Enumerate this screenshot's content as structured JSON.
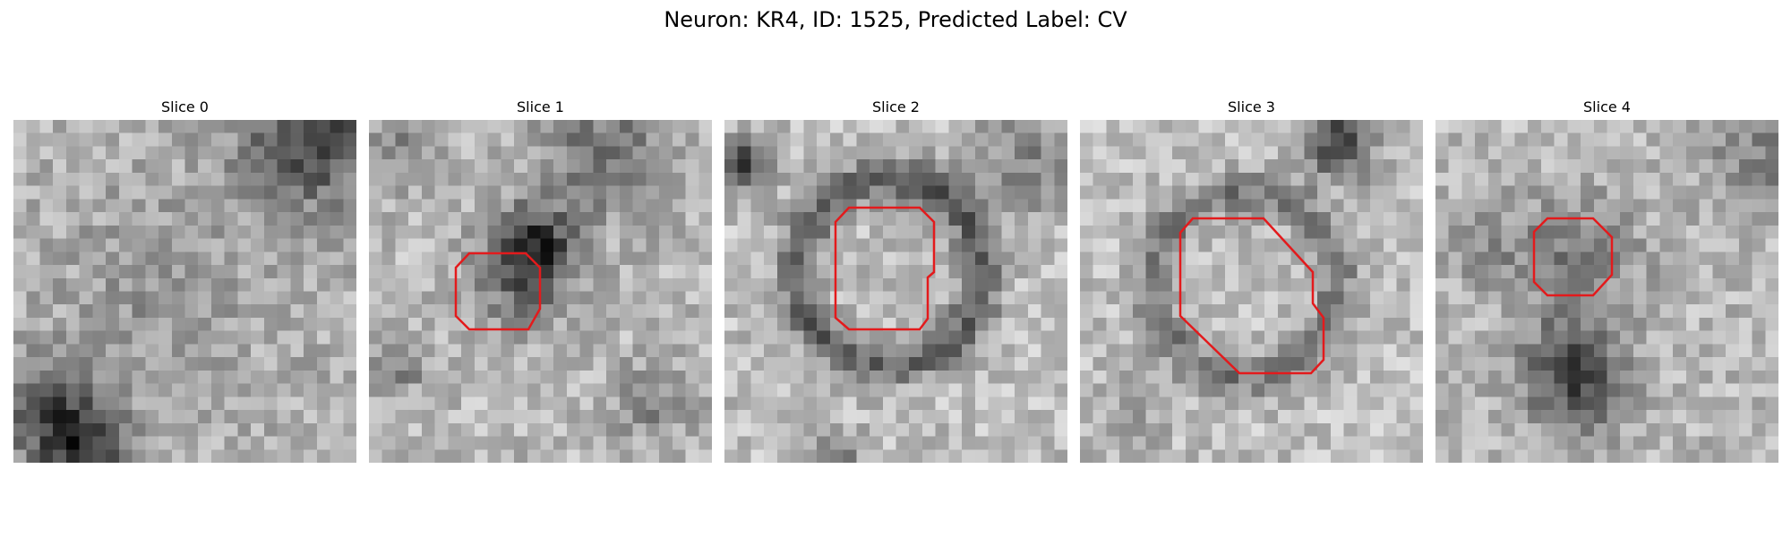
{
  "figure": {
    "title": "Neuron: KR4, ID: 1525, Predicted Label: CV",
    "contour_color": "#e31a1c"
  },
  "panels": [
    {
      "title": "Slice 0",
      "slice_index": 0
    },
    {
      "title": "Slice 1",
      "slice_index": 1
    },
    {
      "title": "Slice 2",
      "slice_index": 2
    },
    {
      "title": "Slice 3",
      "slice_index": 3
    },
    {
      "title": "Slice 4",
      "slice_index": 4
    }
  ]
}
